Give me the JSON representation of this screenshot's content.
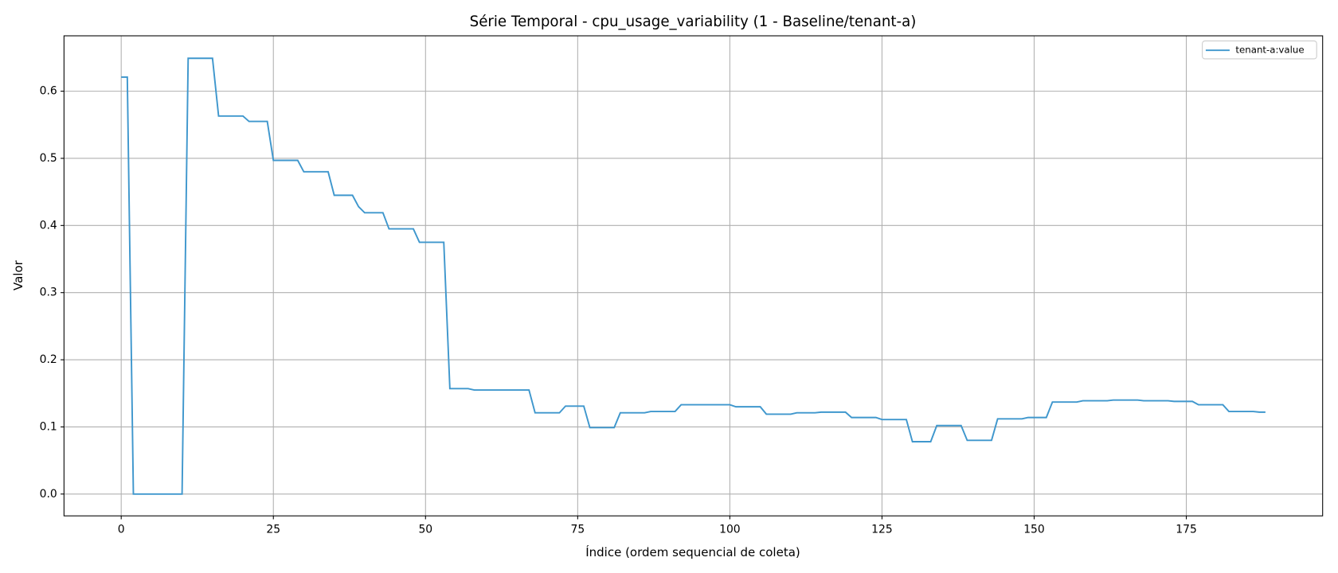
{
  "chart_data": {
    "type": "line",
    "title": "Série Temporal - cpu_usage_variability (1 - Baseline/tenant-a)",
    "xlabel": "Índice (ordem sequencial de coleta)",
    "ylabel": "Valor",
    "x": [
      0,
      1,
      2,
      3,
      4,
      5,
      6,
      7,
      8,
      9,
      10,
      11,
      12,
      13,
      14,
      15,
      16,
      17,
      18,
      19,
      20,
      21,
      22,
      23,
      24,
      25,
      26,
      27,
      28,
      29,
      30,
      31,
      32,
      33,
      34,
      35,
      36,
      37,
      38,
      39,
      40,
      41,
      42,
      43,
      44,
      45,
      46,
      47,
      48,
      49,
      50,
      51,
      52,
      53,
      54,
      55,
      56,
      57,
      58,
      59,
      60,
      61,
      62,
      63,
      64,
      65,
      66,
      67,
      68,
      69,
      70,
      71,
      72,
      73,
      74,
      75,
      76,
      77,
      78,
      79,
      80,
      81,
      82,
      83,
      84,
      85,
      86,
      87,
      88,
      89,
      90,
      91,
      92,
      93,
      94,
      95,
      96,
      97,
      98,
      99,
      100,
      101,
      102,
      103,
      104,
      105,
      106,
      107,
      108,
      109,
      110,
      111,
      112,
      113,
      114,
      115,
      116,
      117,
      118,
      119,
      120,
      121,
      122,
      123,
      124,
      125,
      126,
      127,
      128,
      129,
      130,
      131,
      132,
      133,
      134,
      135,
      136,
      137,
      138,
      139,
      140,
      141,
      142,
      143,
      144,
      145,
      146,
      147,
      148,
      149,
      150,
      151,
      152,
      153,
      154,
      155,
      156,
      157,
      158,
      159,
      160,
      161,
      162,
      163,
      164,
      165,
      166,
      167,
      168,
      169,
      170,
      171,
      172,
      173,
      174,
      175,
      176,
      177,
      178,
      179,
      180,
      181,
      182,
      183,
      184,
      185,
      186,
      187,
      188
    ],
    "series": [
      {
        "name": "tenant-a:value",
        "color": "#3f97cd",
        "values": [
          0.621,
          0.621,
          0,
          0,
          0,
          0,
          0,
          0,
          0,
          0,
          0,
          0.649,
          0.649,
          0.649,
          0.649,
          0.649,
          0.563,
          0.563,
          0.563,
          0.563,
          0.563,
          0.555,
          0.555,
          0.555,
          0.555,
          0.497,
          0.497,
          0.497,
          0.497,
          0.497,
          0.48,
          0.48,
          0.48,
          0.48,
          0.48,
          0.445,
          0.445,
          0.445,
          0.445,
          0.428,
          0.419,
          0.419,
          0.419,
          0.419,
          0.395,
          0.395,
          0.395,
          0.395,
          0.395,
          0.375,
          0.375,
          0.375,
          0.375,
          0.375,
          0.157,
          0.157,
          0.157,
          0.157,
          0.155,
          0.155,
          0.155,
          0.155,
          0.155,
          0.155,
          0.155,
          0.155,
          0.155,
          0.155,
          0.121,
          0.121,
          0.121,
          0.121,
          0.121,
          0.131,
          0.131,
          0.131,
          0.131,
          0.099,
          0.099,
          0.099,
          0.099,
          0.099,
          0.121,
          0.121,
          0.121,
          0.121,
          0.121,
          0.123,
          0.123,
          0.123,
          0.123,
          0.123,
          0.133,
          0.133,
          0.133,
          0.133,
          0.133,
          0.133,
          0.133,
          0.133,
          0.133,
          0.13,
          0.13,
          0.13,
          0.13,
          0.13,
          0.119,
          0.119,
          0.119,
          0.119,
          0.119,
          0.121,
          0.121,
          0.121,
          0.121,
          0.122,
          0.122,
          0.122,
          0.122,
          0.122,
          0.114,
          0.114,
          0.114,
          0.114,
          0.114,
          0.111,
          0.111,
          0.111,
          0.111,
          0.111,
          0.078,
          0.078,
          0.078,
          0.078,
          0.102,
          0.102,
          0.102,
          0.102,
          0.102,
          0.08,
          0.08,
          0.08,
          0.08,
          0.08,
          0.112,
          0.112,
          0.112,
          0.112,
          0.112,
          0.114,
          0.114,
          0.114,
          0.114,
          0.137,
          0.137,
          0.137,
          0.137,
          0.137,
          0.139,
          0.139,
          0.139,
          0.139,
          0.139,
          0.14,
          0.14,
          0.14,
          0.14,
          0.14,
          0.139,
          0.139,
          0.139,
          0.139,
          0.139,
          0.138,
          0.138,
          0.138,
          0.138,
          0.133,
          0.133,
          0.133,
          0.133,
          0.133,
          0.123,
          0.123,
          0.123,
          0.123,
          0.123,
          0.122,
          0.122
        ]
      }
    ],
    "xlim": [
      -9.4,
      197.4
    ],
    "ylim": [
      -0.0325,
      0.6825
    ],
    "xticks": [
      0,
      25,
      50,
      75,
      100,
      125,
      150,
      175
    ],
    "yticks": [
      {
        "value": 0,
        "label": "0.0"
      },
      0.1,
      0.2,
      0.3,
      0.4,
      0.5,
      0.6
    ],
    "grid": true,
    "legend": "upper right"
  }
}
